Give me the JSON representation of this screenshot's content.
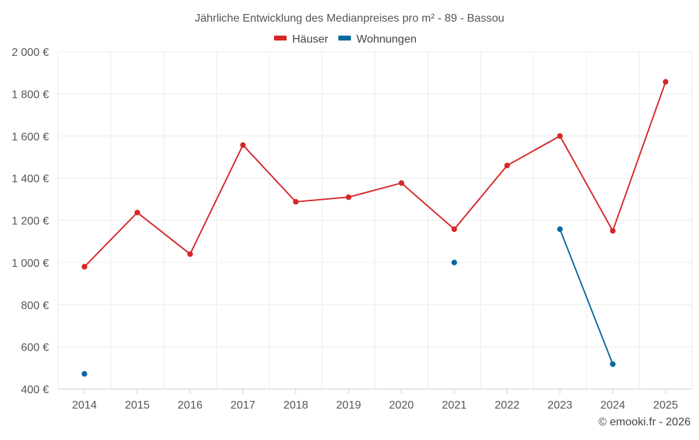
{
  "chart_data": {
    "type": "line",
    "title": "Jährliche Entwicklung des Medianpreises pro m² - 89 - Bassou",
    "xlabel": "",
    "ylabel": "",
    "categories": [
      "2014",
      "2015",
      "2016",
      "2017",
      "2018",
      "2019",
      "2020",
      "2021",
      "2022",
      "2023",
      "2024",
      "2025"
    ],
    "ylim": [
      400,
      2000
    ],
    "yticks": [
      400,
      600,
      800,
      1000,
      1200,
      1400,
      1600,
      1800,
      2000
    ],
    "ytick_labels": [
      "400 €",
      "600 €",
      "800 €",
      "1 000 €",
      "1 200 €",
      "1 400 €",
      "1 600 €",
      "1 800 €",
      "2 000 €"
    ],
    "grid": true,
    "legend_position": "top-center",
    "series": [
      {
        "name": "Häuser",
        "color": "#d62728",
        "values": [
          980,
          1237,
          1040,
          1557,
          1288,
          1310,
          1377,
          1158,
          1460,
          1600,
          1150,
          1857
        ]
      },
      {
        "name": "Wohnungen",
        "color": "#0868a0",
        "values": [
          472,
          null,
          null,
          null,
          null,
          null,
          null,
          1000,
          null,
          1158,
          518,
          null
        ]
      }
    ]
  },
  "footer": {
    "copyright": "© emooki.fr - 2026"
  }
}
